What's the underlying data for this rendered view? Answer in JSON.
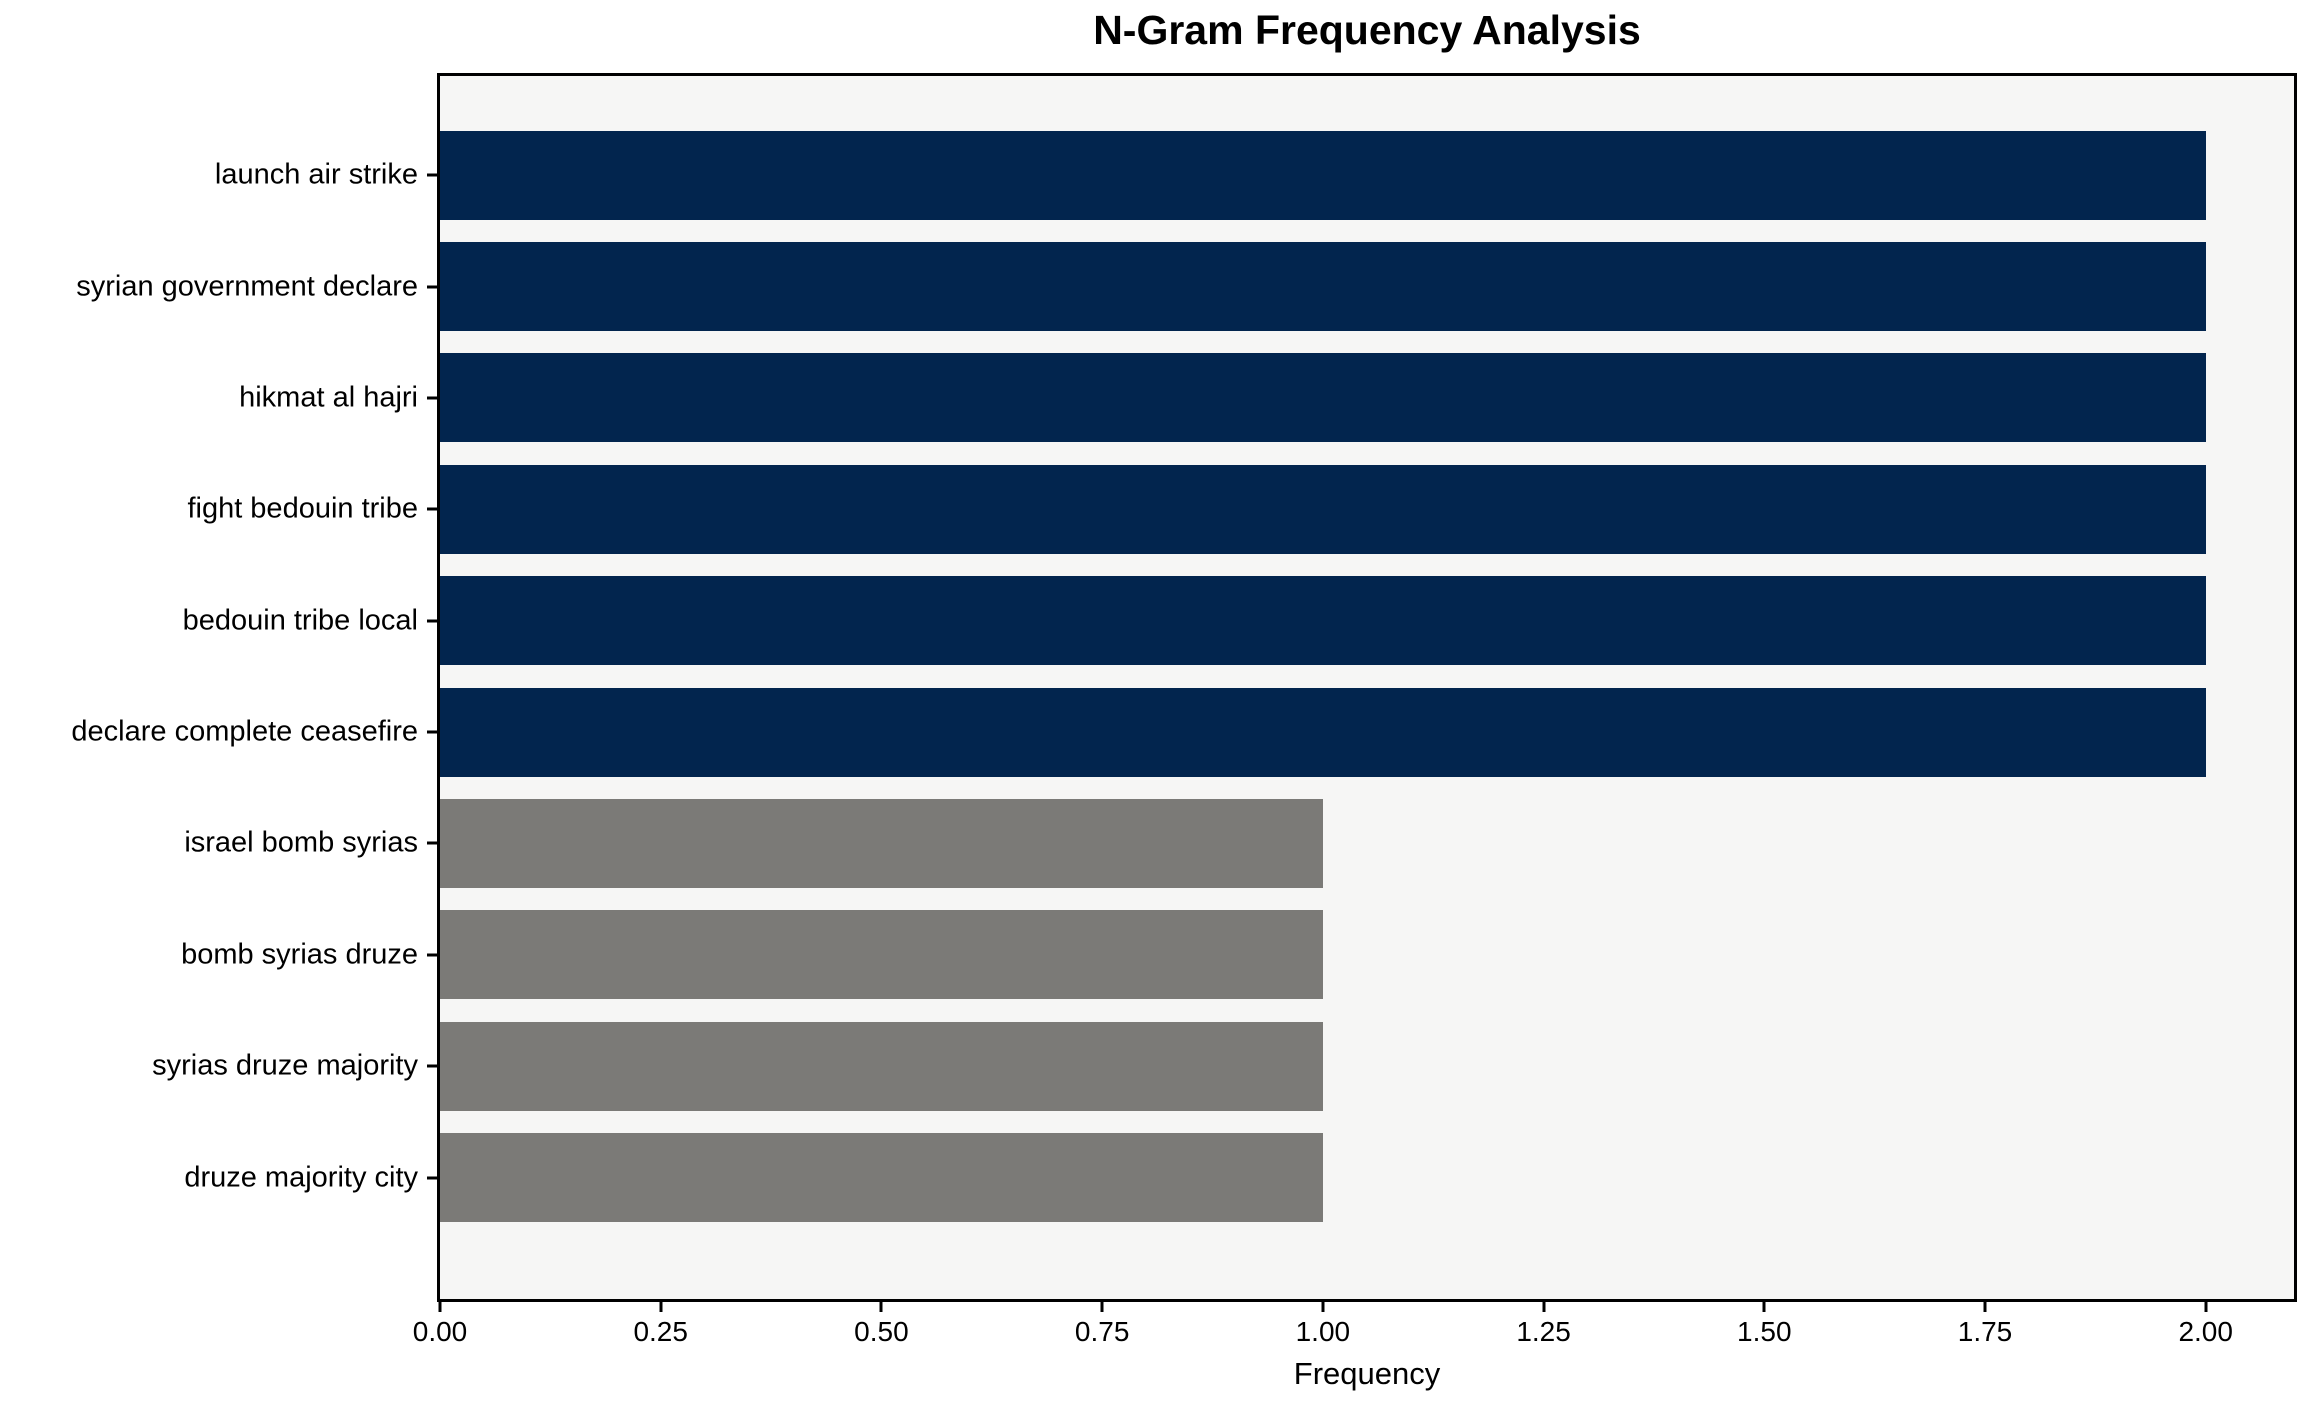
{
  "chart_data": {
    "type": "bar",
    "orientation": "horizontal",
    "title": "N-Gram Frequency Analysis",
    "xlabel": "Frequency",
    "ylabel": "",
    "categories": [
      "launch air strike",
      "syrian government declare",
      "hikmat al hajri",
      "fight bedouin tribe",
      "bedouin tribe local",
      "declare complete ceasefire",
      "israel bomb syrias",
      "bomb syrias druze",
      "syrias druze majority",
      "druze majority city"
    ],
    "values": [
      2,
      2,
      2,
      2,
      2,
      2,
      1,
      1,
      1,
      1
    ],
    "bar_colors": [
      "#02254e",
      "#02254e",
      "#02254e",
      "#02254e",
      "#02254e",
      "#02254e",
      "#7b7a77",
      "#7b7a77",
      "#7b7a77",
      "#7b7a77"
    ],
    "xlim": [
      0,
      2.1
    ],
    "xtick_labels": [
      "0.00",
      "0.25",
      "0.50",
      "0.75",
      "1.00",
      "1.25",
      "1.50",
      "1.75",
      "2.00"
    ],
    "xtick_values": [
      0,
      0.25,
      0.5,
      0.75,
      1.0,
      1.25,
      1.5,
      1.75,
      2.0
    ],
    "grid": false,
    "legend_position": "none",
    "colors": {
      "bar_frequency_2": "#02254e",
      "bar_frequency_1": "#7b7a77",
      "plot_background": "#f6f6f5",
      "figure_background": "#ffffff",
      "axis_line": "#000000",
      "text": "#000000"
    }
  }
}
